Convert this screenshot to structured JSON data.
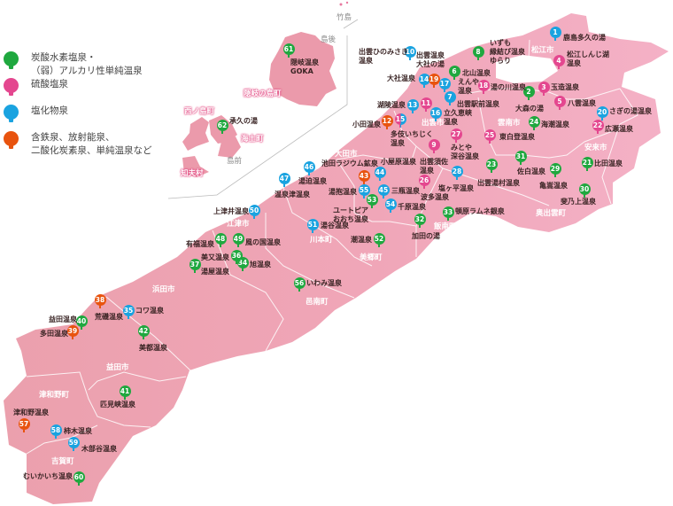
{
  "legend": [
    {
      "type": "green",
      "label": "炭酸水素塩泉・\n（弱）アルカリ性単純温泉"
    },
    {
      "type": "pink",
      "label": "硫酸塩泉"
    },
    {
      "type": "blue",
      "label": "塩化物泉"
    },
    {
      "type": "orange",
      "label": "含鉄泉、放射能泉、\n二酸化炭素泉、単純温泉など"
    }
  ],
  "colors": {
    "green": "#1fa83f",
    "pink": "#e4478f",
    "blue": "#1aa3e0",
    "orange": "#e8530e",
    "land": "#efa5b4",
    "oki": "#eb9aab"
  },
  "areas": {
    "takeshima": "竹島",
    "dogo": "島後",
    "dozen": "島前",
    "okinoshima": "隠岐の島町",
    "nishinoshima": "西ノ島町",
    "ama": "海士町",
    "chibu": "知夫村",
    "matsue": "松江市",
    "izumo": "出雲市",
    "unnan": "雲南市",
    "yasugi": "安来市",
    "oda": "大田市",
    "okuizumo": "奥出雲町",
    "iinan": "飯南町",
    "gotsu": "江津市",
    "kawamoto": "川本町",
    "misato": "美郷町",
    "onan": "邑南町",
    "hamada": "浜田市",
    "masuda": "益田市",
    "tsuwano": "津和野町",
    "yoshika": "吉賀町"
  },
  "springs": [
    {
      "no": "1",
      "type": "blue",
      "name": "鹿島多久の湯"
    },
    {
      "no": "2",
      "type": "green",
      "name": "大森の湯"
    },
    {
      "no": "3",
      "type": "pink",
      "name": "玉造温泉"
    },
    {
      "no": "4",
      "type": "pink",
      "name": "松江しんじ湖\n温泉"
    },
    {
      "no": "5",
      "type": "pink",
      "name": "八雲温泉"
    },
    {
      "no": "6",
      "type": "green",
      "name": "北山温泉"
    },
    {
      "no": "7",
      "type": "blue",
      "name": "出雲駅前温泉"
    },
    {
      "no": "8",
      "type": "green",
      "name": "いずも\n縁結び温泉\nゆらり"
    },
    {
      "no": "9",
      "type": "pink",
      "name": "出雲須佐\n温泉"
    },
    {
      "no": "10",
      "type": "blue",
      "name": "出雲ひのみさき\n温泉"
    },
    {
      "no": "11",
      "type": "pink",
      "name": ""
    },
    {
      "no": "12",
      "type": "orange",
      "name": "小田温泉"
    },
    {
      "no": "13",
      "type": "blue",
      "name": "湖陵温泉"
    },
    {
      "no": "14",
      "type": "blue",
      "name": "大社温泉"
    },
    {
      "no": "15",
      "type": "pink-blue",
      "name": "多伎いちじく\n温泉"
    },
    {
      "no": "16",
      "type": "blue",
      "name": "立久恵峡\n温泉"
    },
    {
      "no": "17",
      "type": "blue",
      "name": "えんや\n温泉"
    },
    {
      "no": "18",
      "type": "pink",
      "name": "湯の川温泉"
    },
    {
      "no": "19",
      "type": "orange",
      "name": "出雲温泉\n大社の湯"
    },
    {
      "no": "20",
      "type": "blue",
      "name": "さぎの湯温泉"
    },
    {
      "no": "21",
      "type": "green",
      "name": "比田温泉"
    },
    {
      "no": "22",
      "type": "pink",
      "name": "広瀬温泉"
    },
    {
      "no": "23",
      "type": "green",
      "name": "出雲湯村温泉"
    },
    {
      "no": "24",
      "type": "green",
      "name": "海潮温泉"
    },
    {
      "no": "25",
      "type": "pink",
      "name": "東白登温泉"
    },
    {
      "no": "26",
      "type": "pink",
      "name": "波多温泉"
    },
    {
      "no": "27",
      "type": "pink",
      "name": "みとや\n深谷温泉"
    },
    {
      "no": "28",
      "type": "blue",
      "name": "塩ヶ平温泉"
    },
    {
      "no": "29",
      "type": "green",
      "name": "亀嵩温泉"
    },
    {
      "no": "30",
      "type": "green",
      "name": "斐乃上温泉"
    },
    {
      "no": "31",
      "type": "green",
      "name": "佐白温泉"
    },
    {
      "no": "32",
      "type": "green",
      "name": "加田の湯"
    },
    {
      "no": "33",
      "type": "green",
      "name": "頓原ラムネ銀泉"
    },
    {
      "no": "34",
      "type": "green",
      "name": "旭温泉"
    },
    {
      "no": "35",
      "type": "blue",
      "name": "コワ温泉"
    },
    {
      "no": "36",
      "type": "green",
      "name": "美又温泉"
    },
    {
      "no": "37",
      "type": "green",
      "name": "湯屋温泉"
    },
    {
      "no": "38",
      "type": "orange",
      "name": "荒磯温泉"
    },
    {
      "no": "39",
      "type": "orange",
      "name": "多田温泉"
    },
    {
      "no": "40",
      "type": "green",
      "name": "益田温泉"
    },
    {
      "no": "41",
      "type": "green",
      "name": "匹見峡温泉"
    },
    {
      "no": "42",
      "type": "green",
      "name": "美都温泉"
    },
    {
      "no": "43",
      "type": "orange",
      "name": ""
    },
    {
      "no": "44",
      "type": "blue",
      "name": "小屋原温泉"
    },
    {
      "no": "45",
      "type": "blue",
      "name": "三瓶温泉"
    },
    {
      "no": "46",
      "type": "blue",
      "name": "池田ラジウム鉱泉"
    },
    {
      "no": "47",
      "type": "blue",
      "name": "温泉津温泉"
    },
    {
      "no": "48",
      "type": "green",
      "name": "有福温泉"
    },
    {
      "no": "49",
      "type": "green",
      "name": "風の国温泉"
    },
    {
      "no": "50",
      "type": "blue",
      "name": "上津井温泉"
    },
    {
      "no": "51",
      "type": "blue",
      "name": "湯谷温泉"
    },
    {
      "no": "52",
      "type": "green",
      "name": "潮温泉"
    },
    {
      "no": "53",
      "type": "green",
      "name": "ユートピア\nおおち温泉"
    },
    {
      "no": "54",
      "type": "blue",
      "name": "千原温泉"
    },
    {
      "no": "55",
      "type": "blue",
      "name": "湯抱温泉"
    },
    {
      "no": "56",
      "type": "green",
      "name": "いわみ温泉"
    },
    {
      "no": "57",
      "type": "orange",
      "name": "津和野温泉"
    },
    {
      "no": "58",
      "type": "blue",
      "name": "柿木温泉"
    },
    {
      "no": "59",
      "type": "blue",
      "name": "木部谷温泉"
    },
    {
      "no": "60",
      "type": "green",
      "name": "むいかいち温泉"
    },
    {
      "no": "61",
      "type": "green",
      "name": "隠岐温泉\nGOKA"
    },
    {
      "no": "62",
      "type": "green",
      "name": "承久の湯"
    }
  ],
  "extra_labels": {
    "yusako": "湯迫温泉"
  }
}
